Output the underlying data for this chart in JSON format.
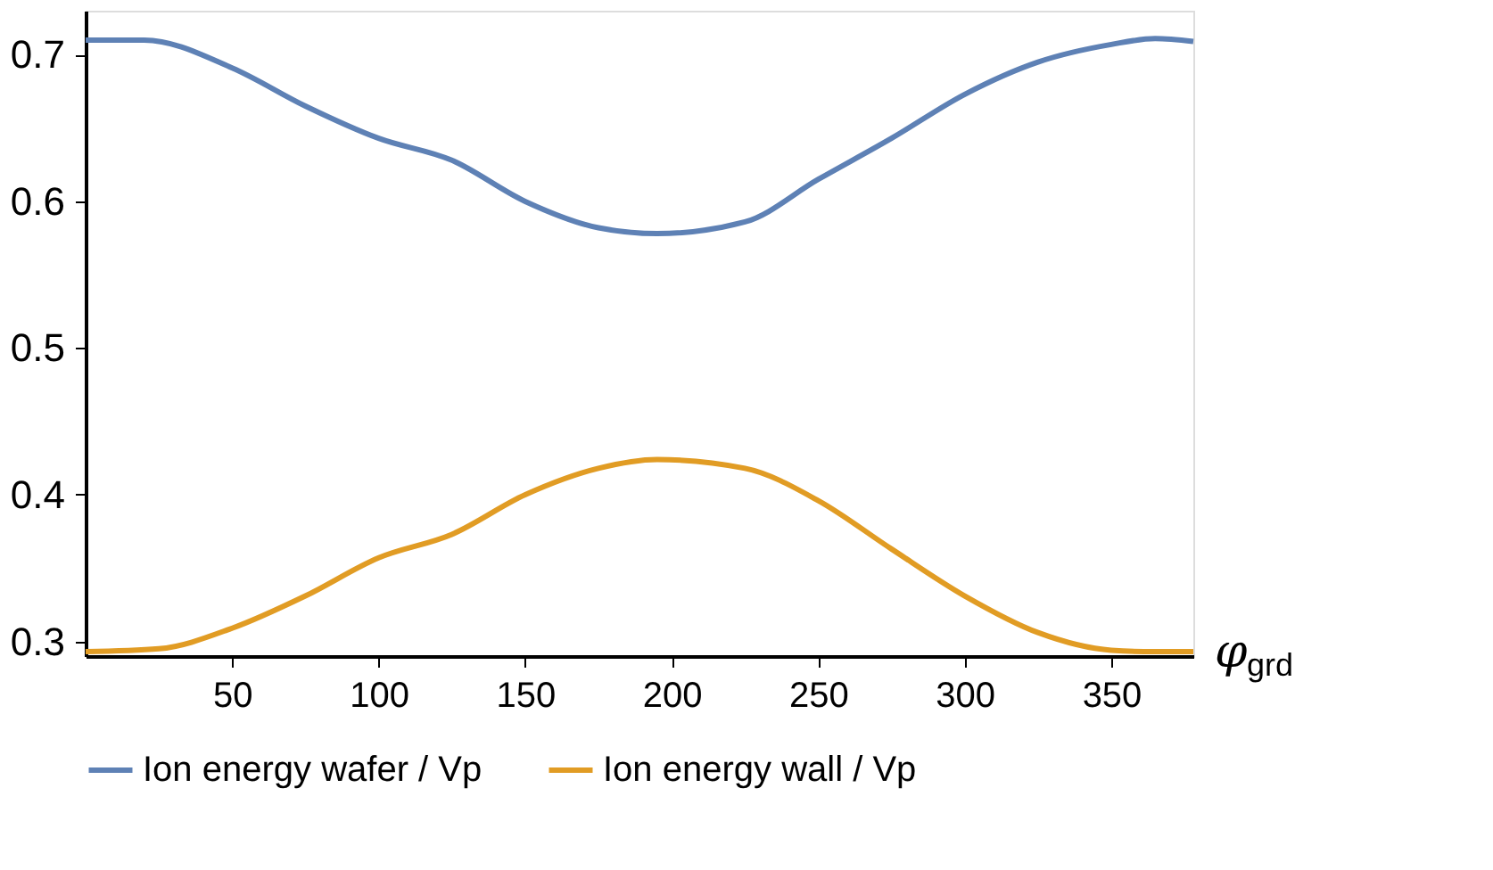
{
  "chart_data": {
    "type": "line",
    "xlabel": "φ$_{grd}$",
    "xlim": [
      0,
      378
    ],
    "xticks": [
      50,
      100,
      150,
      200,
      250,
      300,
      350
    ],
    "ylim": [
      0.29,
      0.73
    ],
    "yticks": [
      0.3,
      0.4,
      0.5,
      0.6,
      0.7
    ],
    "grid": false,
    "legend": "bottom",
    "marker": "none",
    "line_style": "solid",
    "series": [
      {
        "name": "Ion energy wafer / Vp",
        "color": "#5e81b5",
        "x": [
          0,
          20,
          50,
          75,
          100,
          125,
          150,
          175,
          195,
          225,
          250,
          275,
          300,
          325,
          350,
          365,
          378
        ],
        "values": [
          0.71,
          0.71,
          0.691,
          0.665,
          0.643,
          0.628,
          0.6,
          0.582,
          0.578,
          0.586,
          0.615,
          0.643,
          0.673,
          0.695,
          0.707,
          0.711,
          0.709
        ]
      },
      {
        "name": "Ion energy wall / Vp",
        "color": "#e19c24",
        "x": [
          0,
          25,
          50,
          75,
          100,
          125,
          150,
          175,
          195,
          225,
          250,
          275,
          300,
          325,
          350,
          365,
          378
        ],
        "values": [
          0.293,
          0.295,
          0.309,
          0.331,
          0.357,
          0.373,
          0.4,
          0.418,
          0.424,
          0.418,
          0.396,
          0.363,
          0.331,
          0.306,
          0.294,
          0.293,
          0.293
        ]
      }
    ]
  }
}
